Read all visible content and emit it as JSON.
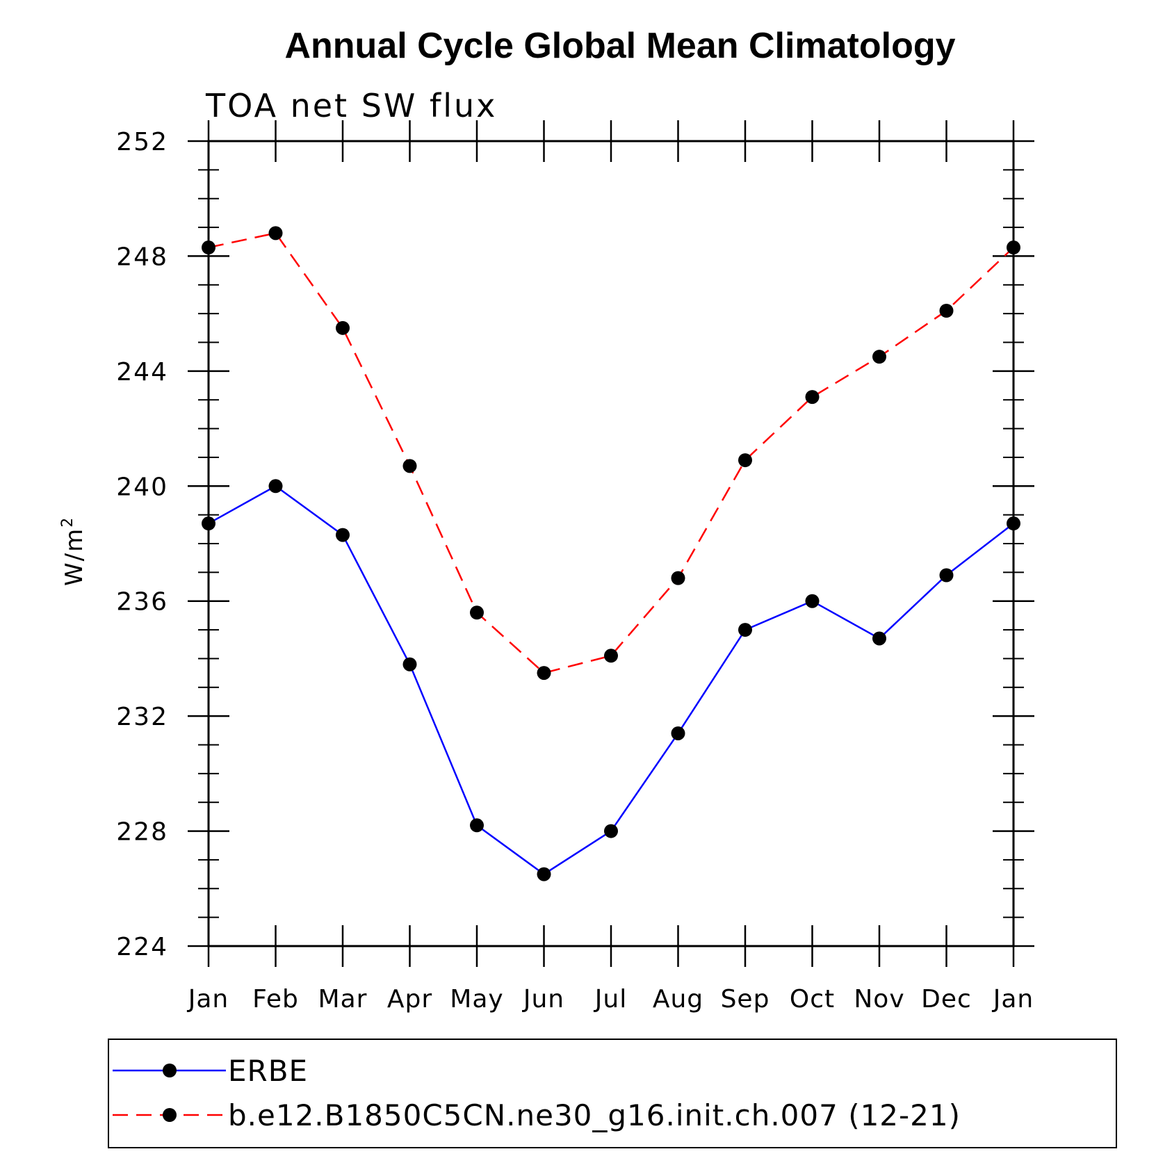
{
  "chart_data": {
    "type": "line",
    "title": "Annual Cycle Global Mean Climatology",
    "subtitle": "TOA net SW flux",
    "ylabel": "W/m",
    "ylabel_superscript": "2",
    "ylim": [
      224,
      252
    ],
    "yticks": [
      "224",
      "228",
      "232",
      "236",
      "240",
      "244",
      "248",
      "252"
    ],
    "categories": [
      "Jan",
      "Feb",
      "Mar",
      "Apr",
      "May",
      "Jun",
      "Jul",
      "Aug",
      "Sep",
      "Oct",
      "Nov",
      "Dec",
      "Jan"
    ],
    "grid": false,
    "legend_position": "bottom",
    "series": [
      {
        "name": "ERBE",
        "color": "#0000ff",
        "line_style": "solid",
        "marker": "filled-circle",
        "values": [
          238.7,
          240.0,
          238.3,
          233.8,
          228.2,
          226.5,
          228.0,
          231.4,
          235.0,
          236.0,
          234.7,
          236.9,
          238.7
        ]
      },
      {
        "name": "b.e12.B1850C5CN.ne30_g16.init.ch.007 (12-21)",
        "color": "#ff0000",
        "line_style": "dashed",
        "marker": "filled-circle",
        "values": [
          248.3,
          248.8,
          245.5,
          240.7,
          235.6,
          233.5,
          234.1,
          236.8,
          240.9,
          243.1,
          244.5,
          246.1,
          248.3
        ]
      }
    ]
  }
}
